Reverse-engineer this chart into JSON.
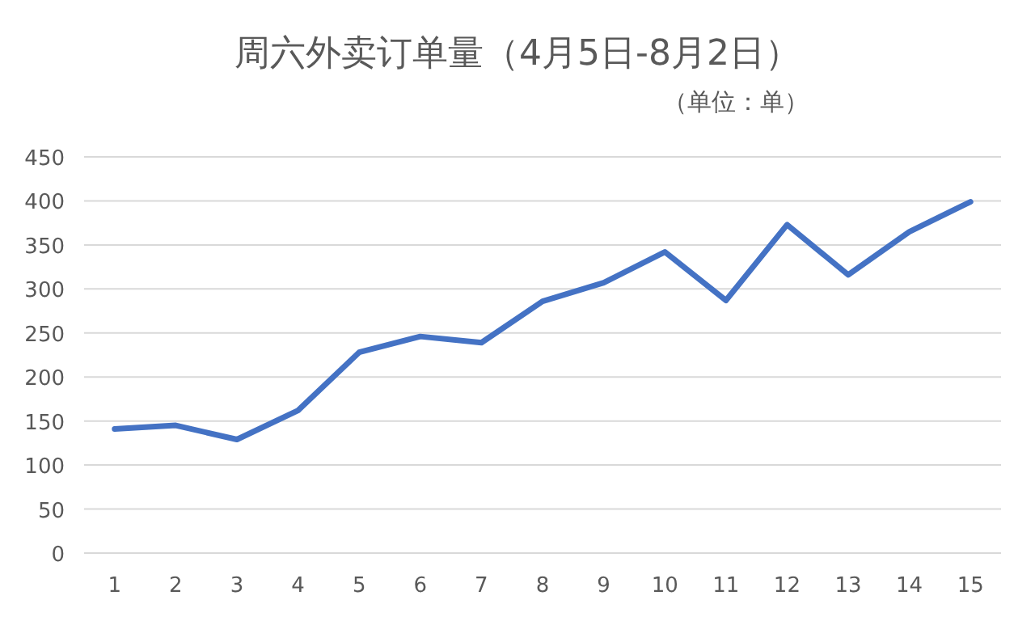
{
  "chart_data": {
    "type": "line",
    "title": "周六外卖订单量（4月5日-8月2日）",
    "subtitle": "（单位：单）",
    "categories": [
      "1",
      "2",
      "3",
      "4",
      "5",
      "6",
      "7",
      "8",
      "9",
      "10",
      "11",
      "12",
      "13",
      "14",
      "15"
    ],
    "series": [
      {
        "color": "#4472c4",
        "values": [
          141,
          145,
          129,
          162,
          228,
          246,
          239,
          286,
          307,
          342,
          287,
          373,
          316,
          365,
          399
        ]
      }
    ],
    "ylim": [
      0,
      450
    ],
    "yticks": [
      0,
      50,
      100,
      150,
      200,
      250,
      300,
      350,
      400,
      450
    ],
    "grid": "y",
    "marker": "none",
    "line_style": "solid"
  }
}
